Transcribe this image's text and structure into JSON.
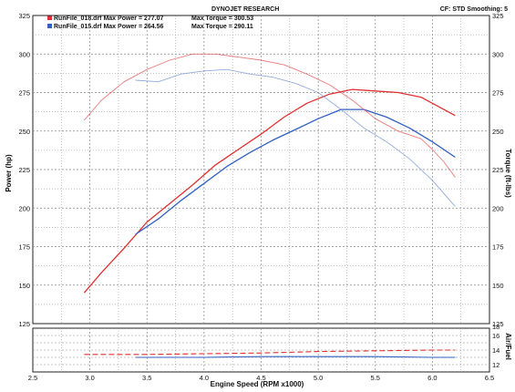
{
  "header": {
    "title": "DYNOJET RESEARCH",
    "settings": "CF: STD   Smoothing: 5",
    "legend": [
      {
        "color": "#e03030",
        "label": "RunFile_018.drf Max Power = 277.07",
        "torque_label": "Max Torque = 300.53"
      },
      {
        "color": "#3060c0",
        "label": "RunFile_015.drf Max Power = 264.56",
        "torque_label": "Max Torque = 290.11"
      }
    ]
  },
  "chart_data": [
    {
      "type": "line",
      "xlabel": "Engine Speed (RPM x1000)",
      "ylabel": "Power (hp)",
      "y2label": "Torque (ft-lbs)",
      "xlim": [
        2.5,
        6.5
      ],
      "ylim": [
        125,
        325
      ],
      "y2lim": [
        125,
        325
      ],
      "grid": true,
      "x_ticks": [
        "2.5",
        "3.0",
        "3.5",
        "4.0",
        "4.5",
        "5.0",
        "5.5",
        "6.0",
        "6.5"
      ],
      "y_ticks": [
        "125",
        "150",
        "175",
        "200",
        "225",
        "250",
        "275",
        "300",
        "325"
      ],
      "y2_ticks": [
        "125",
        "150",
        "175",
        "200",
        "225",
        "250",
        "275",
        "300",
        "325"
      ],
      "series": [
        {
          "name": "RunFile_018.drf",
          "quantity": "power",
          "color": "#e03030",
          "style": "dark",
          "x": [
            2.95,
            3.1,
            3.3,
            3.5,
            3.7,
            3.9,
            4.1,
            4.3,
            4.5,
            4.7,
            4.9,
            5.1,
            5.3,
            5.5,
            5.7,
            5.9,
            6.0,
            6.1,
            6.2
          ],
          "y": [
            145,
            158,
            174,
            191,
            203,
            215,
            228,
            238,
            248,
            259,
            268,
            274,
            277,
            276,
            275,
            272,
            268,
            264,
            260
          ]
        },
        {
          "name": "RunFile_015.drf",
          "quantity": "power",
          "color": "#3060c0",
          "style": "dark",
          "x": [
            3.4,
            3.6,
            3.8,
            4.0,
            4.2,
            4.4,
            4.6,
            4.8,
            5.0,
            5.2,
            5.4,
            5.6,
            5.8,
            6.0,
            6.2
          ],
          "y": [
            183,
            193,
            205,
            216,
            227,
            236,
            244,
            251,
            258,
            264,
            264,
            259,
            252,
            243,
            233
          ]
        },
        {
          "name": "RunFile_018.drf",
          "quantity": "torque",
          "color": "#e05050",
          "style": "light",
          "x": [
            2.95,
            3.1,
            3.3,
            3.5,
            3.7,
            3.9,
            4.1,
            4.3,
            4.5,
            4.7,
            4.9,
            5.1,
            5.3,
            5.5,
            5.7,
            5.9,
            6.0,
            6.1,
            6.2
          ],
          "y": [
            257,
            270,
            282,
            290,
            296,
            300,
            300,
            298,
            296,
            293,
            287,
            280,
            270,
            258,
            250,
            245,
            238,
            230,
            220
          ]
        },
        {
          "name": "RunFile_015.drf",
          "quantity": "torque",
          "color": "#7090d0",
          "style": "light",
          "x": [
            3.4,
            3.6,
            3.8,
            4.0,
            4.2,
            4.4,
            4.6,
            4.8,
            5.0,
            5.2,
            5.4,
            5.6,
            5.8,
            6.0,
            6.2
          ],
          "y": [
            283,
            282,
            287,
            289,
            290,
            287,
            285,
            281,
            275,
            264,
            252,
            243,
            232,
            218,
            201
          ]
        }
      ]
    },
    {
      "type": "line",
      "ylabel": "Air/Fuel",
      "xlim": [
        2.5,
        6.5
      ],
      "ylim": [
        11,
        17
      ],
      "grid": true,
      "y_ticks": [
        "12",
        "14",
        "16"
      ],
      "y2_ticks": [
        "12",
        "14",
        "16",
        "18"
      ],
      "series": [
        {
          "name": "RunFile_018.drf",
          "color": "#e03030",
          "x": [
            2.95,
            3.5,
            4.0,
            4.5,
            5.0,
            5.5,
            6.0,
            6.2
          ],
          "y": [
            13.4,
            13.4,
            13.5,
            13.6,
            13.8,
            13.9,
            14.0,
            14.0
          ]
        },
        {
          "name": "RunFile_015.drf",
          "color": "#3060c0",
          "x": [
            3.4,
            4.0,
            4.5,
            5.0,
            5.5,
            6.0,
            6.2
          ],
          "y": [
            13.0,
            13.0,
            13.1,
            13.1,
            13.1,
            13.0,
            13.0
          ]
        }
      ]
    }
  ]
}
